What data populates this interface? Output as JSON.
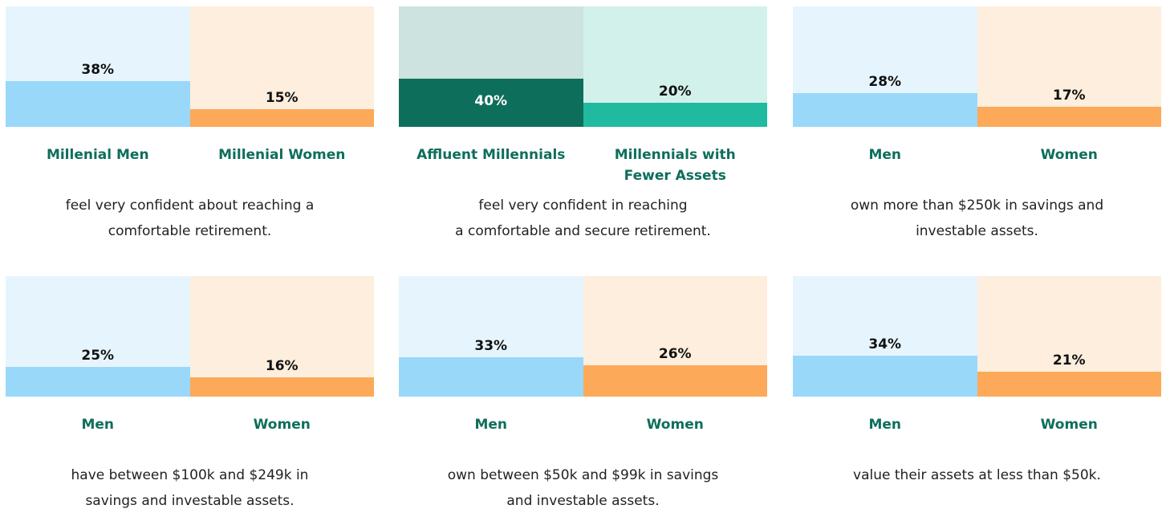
{
  "chart_data": [
    {
      "type": "bar",
      "categories": [
        "Millenial Men",
        "Millenial Women"
      ],
      "values": [
        38,
        15
      ],
      "value_labels": [
        "38%",
        "15%"
      ],
      "colors": [
        "#9ad8fa",
        "#fca95a"
      ],
      "background_colors": [
        "#e6f5fd",
        "#fdeedd"
      ],
      "ylim": [
        0,
        100
      ],
      "caption": [
        "feel very confident about reaching a",
        "comfortable retirement."
      ]
    },
    {
      "type": "bar",
      "categories": [
        "Affluent Millennials",
        "Millennials with Fewer Assets"
      ],
      "values": [
        40,
        20
      ],
      "value_labels": [
        "40%",
        "20%"
      ],
      "colors": [
        "#0e6e5c",
        "#1fba9f"
      ],
      "background_colors": [
        "#cce3df",
        "#d2f1eb"
      ],
      "label_inside": [
        true,
        false
      ],
      "ylim": [
        0,
        100
      ],
      "caption": [
        "feel very confident in reaching",
        "a comfortable and secure retirement."
      ]
    },
    {
      "type": "bar",
      "categories": [
        "Men",
        "Women"
      ],
      "values": [
        28,
        17
      ],
      "value_labels": [
        "28%",
        "17%"
      ],
      "colors": [
        "#9ad8fa",
        "#fca95a"
      ],
      "background_colors": [
        "#e6f5fd",
        "#fdeedd"
      ],
      "ylim": [
        0,
        100
      ],
      "caption": [
        "own more than $250k in savings and",
        "investable assets."
      ]
    },
    {
      "type": "bar",
      "categories": [
        "Men",
        "Women"
      ],
      "values": [
        25,
        16
      ],
      "value_labels": [
        "25%",
        "16%"
      ],
      "colors": [
        "#9ad8fa",
        "#fca95a"
      ],
      "background_colors": [
        "#e6f5fd",
        "#fdeedd"
      ],
      "ylim": [
        0,
        100
      ],
      "caption": [
        "have between $100k and $249k in",
        "savings and investable assets."
      ]
    },
    {
      "type": "bar",
      "categories": [
        "Men",
        "Women"
      ],
      "values": [
        33,
        26
      ],
      "value_labels": [
        "33%",
        "26%"
      ],
      "colors": [
        "#9ad8fa",
        "#fca95a"
      ],
      "background_colors": [
        "#e6f5fd",
        "#fdeedd"
      ],
      "ylim": [
        0,
        100
      ],
      "caption": [
        "own between $50k and $99k in savings",
        "and investable assets."
      ]
    },
    {
      "type": "bar",
      "categories": [
        "Men",
        "Women"
      ],
      "values": [
        34,
        21
      ],
      "value_labels": [
        "34%",
        "21%"
      ],
      "colors": [
        "#9ad8fa",
        "#fca95a"
      ],
      "background_colors": [
        "#e6f5fd",
        "#fdeedd"
      ],
      "ylim": [
        0,
        100
      ],
      "caption": [
        "value their assets at less than $50k."
      ]
    }
  ]
}
